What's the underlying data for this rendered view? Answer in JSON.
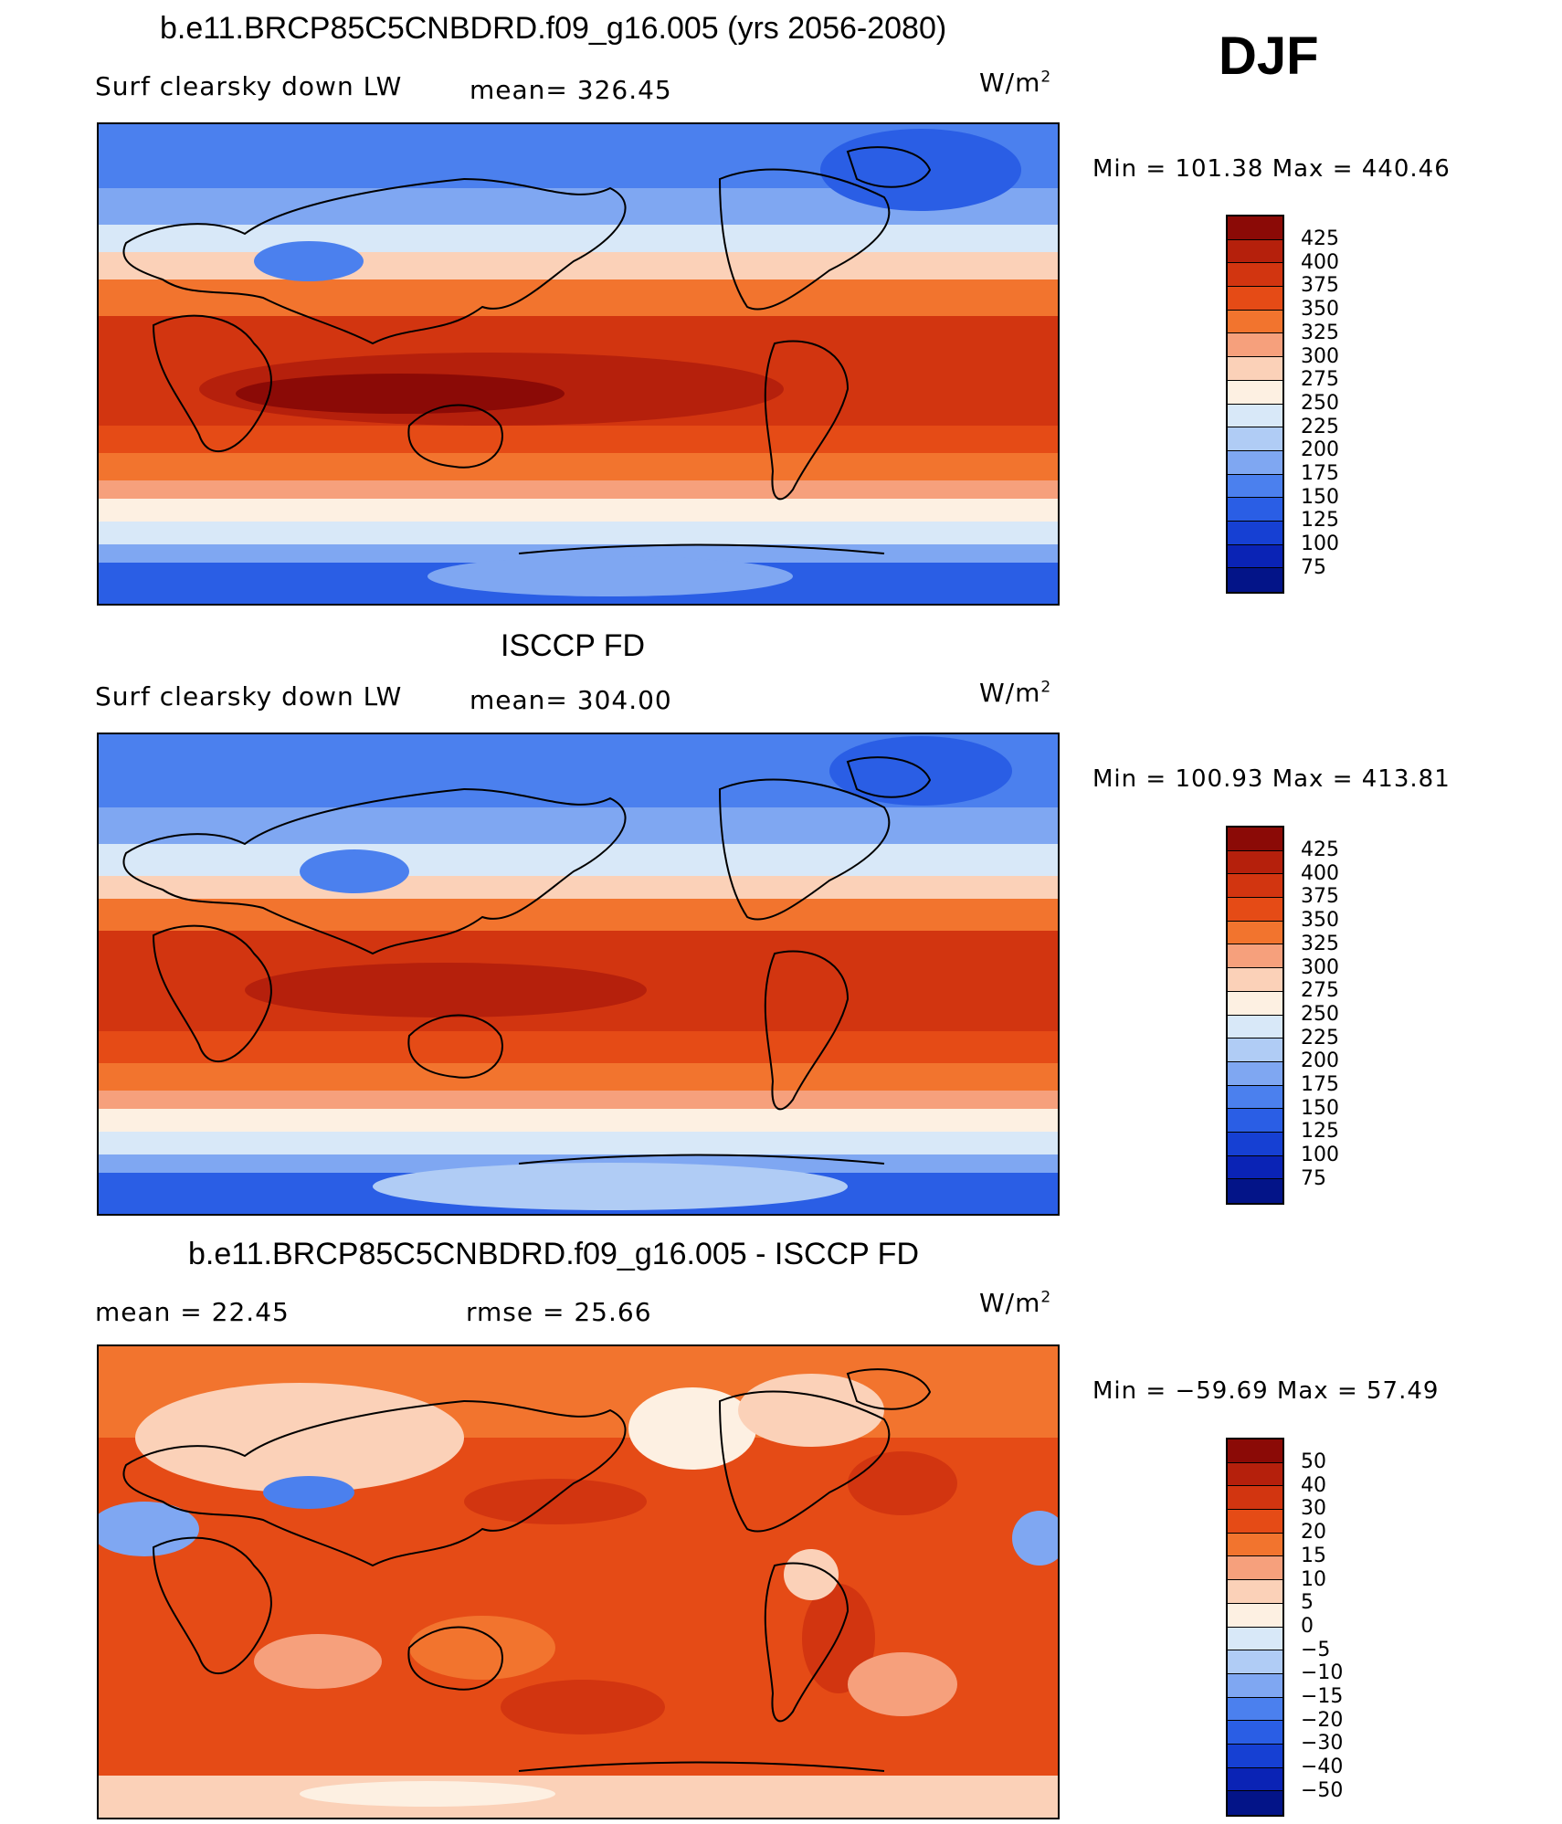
{
  "season": "DJF",
  "units": "W/m",
  "units_exp": "2",
  "panels": [
    {
      "title": "b.e11.BRCP85C5CNBDRD.f09_g16.005 (yrs 2056-2080)",
      "left_label": "Surf clearsky down LW",
      "stat_label": "mean=  326.45",
      "stat2_label": "",
      "minmax": "Min  =  101.38  Max  =  440.46"
    },
    {
      "title": "ISCCP FD",
      "left_label": "Surf clearsky down LW",
      "stat_label": "mean=  304.00",
      "stat2_label": "",
      "minmax": "Min  =  100.93  Max  =  413.81"
    },
    {
      "title": "b.e11.BRCP85C5CNBDRD.f09_g16.005 - ISCCP FD",
      "left_label": "mean  =    22.45",
      "stat_label": "rmse  =    25.66",
      "stat2_label": "",
      "minmax": "Min  =  −59.69  Max  =    57.49"
    }
  ],
  "colorbars": {
    "absolute": {
      "levels": [
        "425",
        "400",
        "375",
        "350",
        "325",
        "300",
        "275",
        "250",
        "225",
        "200",
        "175",
        "150",
        "125",
        "100",
        "75"
      ],
      "colors": [
        "#8b0a06",
        "#b5200c",
        "#d23510",
        "#e54b16",
        "#f2742e",
        "#f6a07c",
        "#fbd1b8",
        "#fdf0e2",
        "#d8e8f8",
        "#b0ccf5",
        "#7fa7f2",
        "#4b80ee",
        "#2a5ee5",
        "#1640d3",
        "#0a23b5",
        "#031488"
      ]
    },
    "difference": {
      "levels": [
        "50",
        "40",
        "30",
        "20",
        "15",
        "10",
        "5",
        "0",
        "−5",
        "−10",
        "−15",
        "−20",
        "−30",
        "−40",
        "−50"
      ],
      "colors": [
        "#8b0a06",
        "#b5200c",
        "#d23510",
        "#e54b16",
        "#f2742e",
        "#f6a07c",
        "#fbd1b8",
        "#fdf0e2",
        "#d8e8f8",
        "#b0ccf5",
        "#7fa7f2",
        "#4b80ee",
        "#2a5ee5",
        "#1640d3",
        "#0a23b5",
        "#031488"
      ]
    }
  }
}
